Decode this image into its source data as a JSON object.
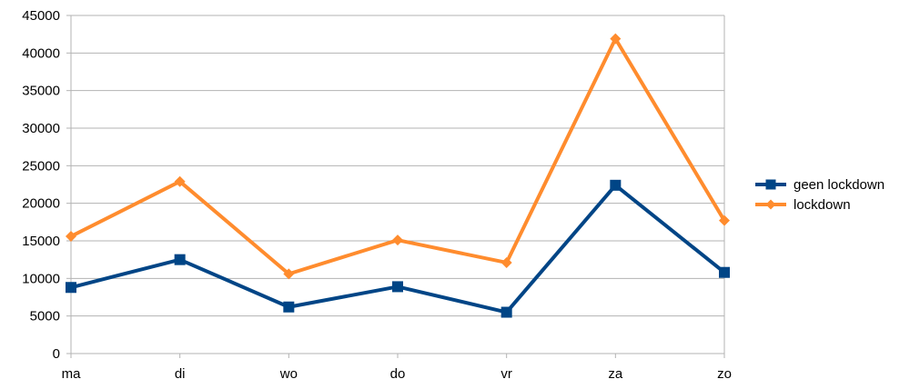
{
  "chart_data": {
    "type": "line",
    "title": "",
    "xlabel": "",
    "ylabel": "",
    "categories": [
      "ma",
      "di",
      "wo",
      "do",
      "vr",
      "za",
      "zo"
    ],
    "ylim": [
      0,
      45000
    ],
    "yticks": [
      0,
      5000,
      10000,
      15000,
      20000,
      25000,
      30000,
      35000,
      40000,
      45000
    ],
    "grid": true,
    "legend_position": "right",
    "series": [
      {
        "name": "geen lockdown",
        "values": [
          8800,
          12500,
          6200,
          8900,
          5500,
          22400,
          10800
        ],
        "color": "#004586",
        "marker": "square"
      },
      {
        "name": "lockdown",
        "values": [
          15600,
          22900,
          10600,
          15100,
          12100,
          41900,
          17700
        ],
        "color": "#ff8c2e",
        "marker": "diamond"
      }
    ]
  }
}
